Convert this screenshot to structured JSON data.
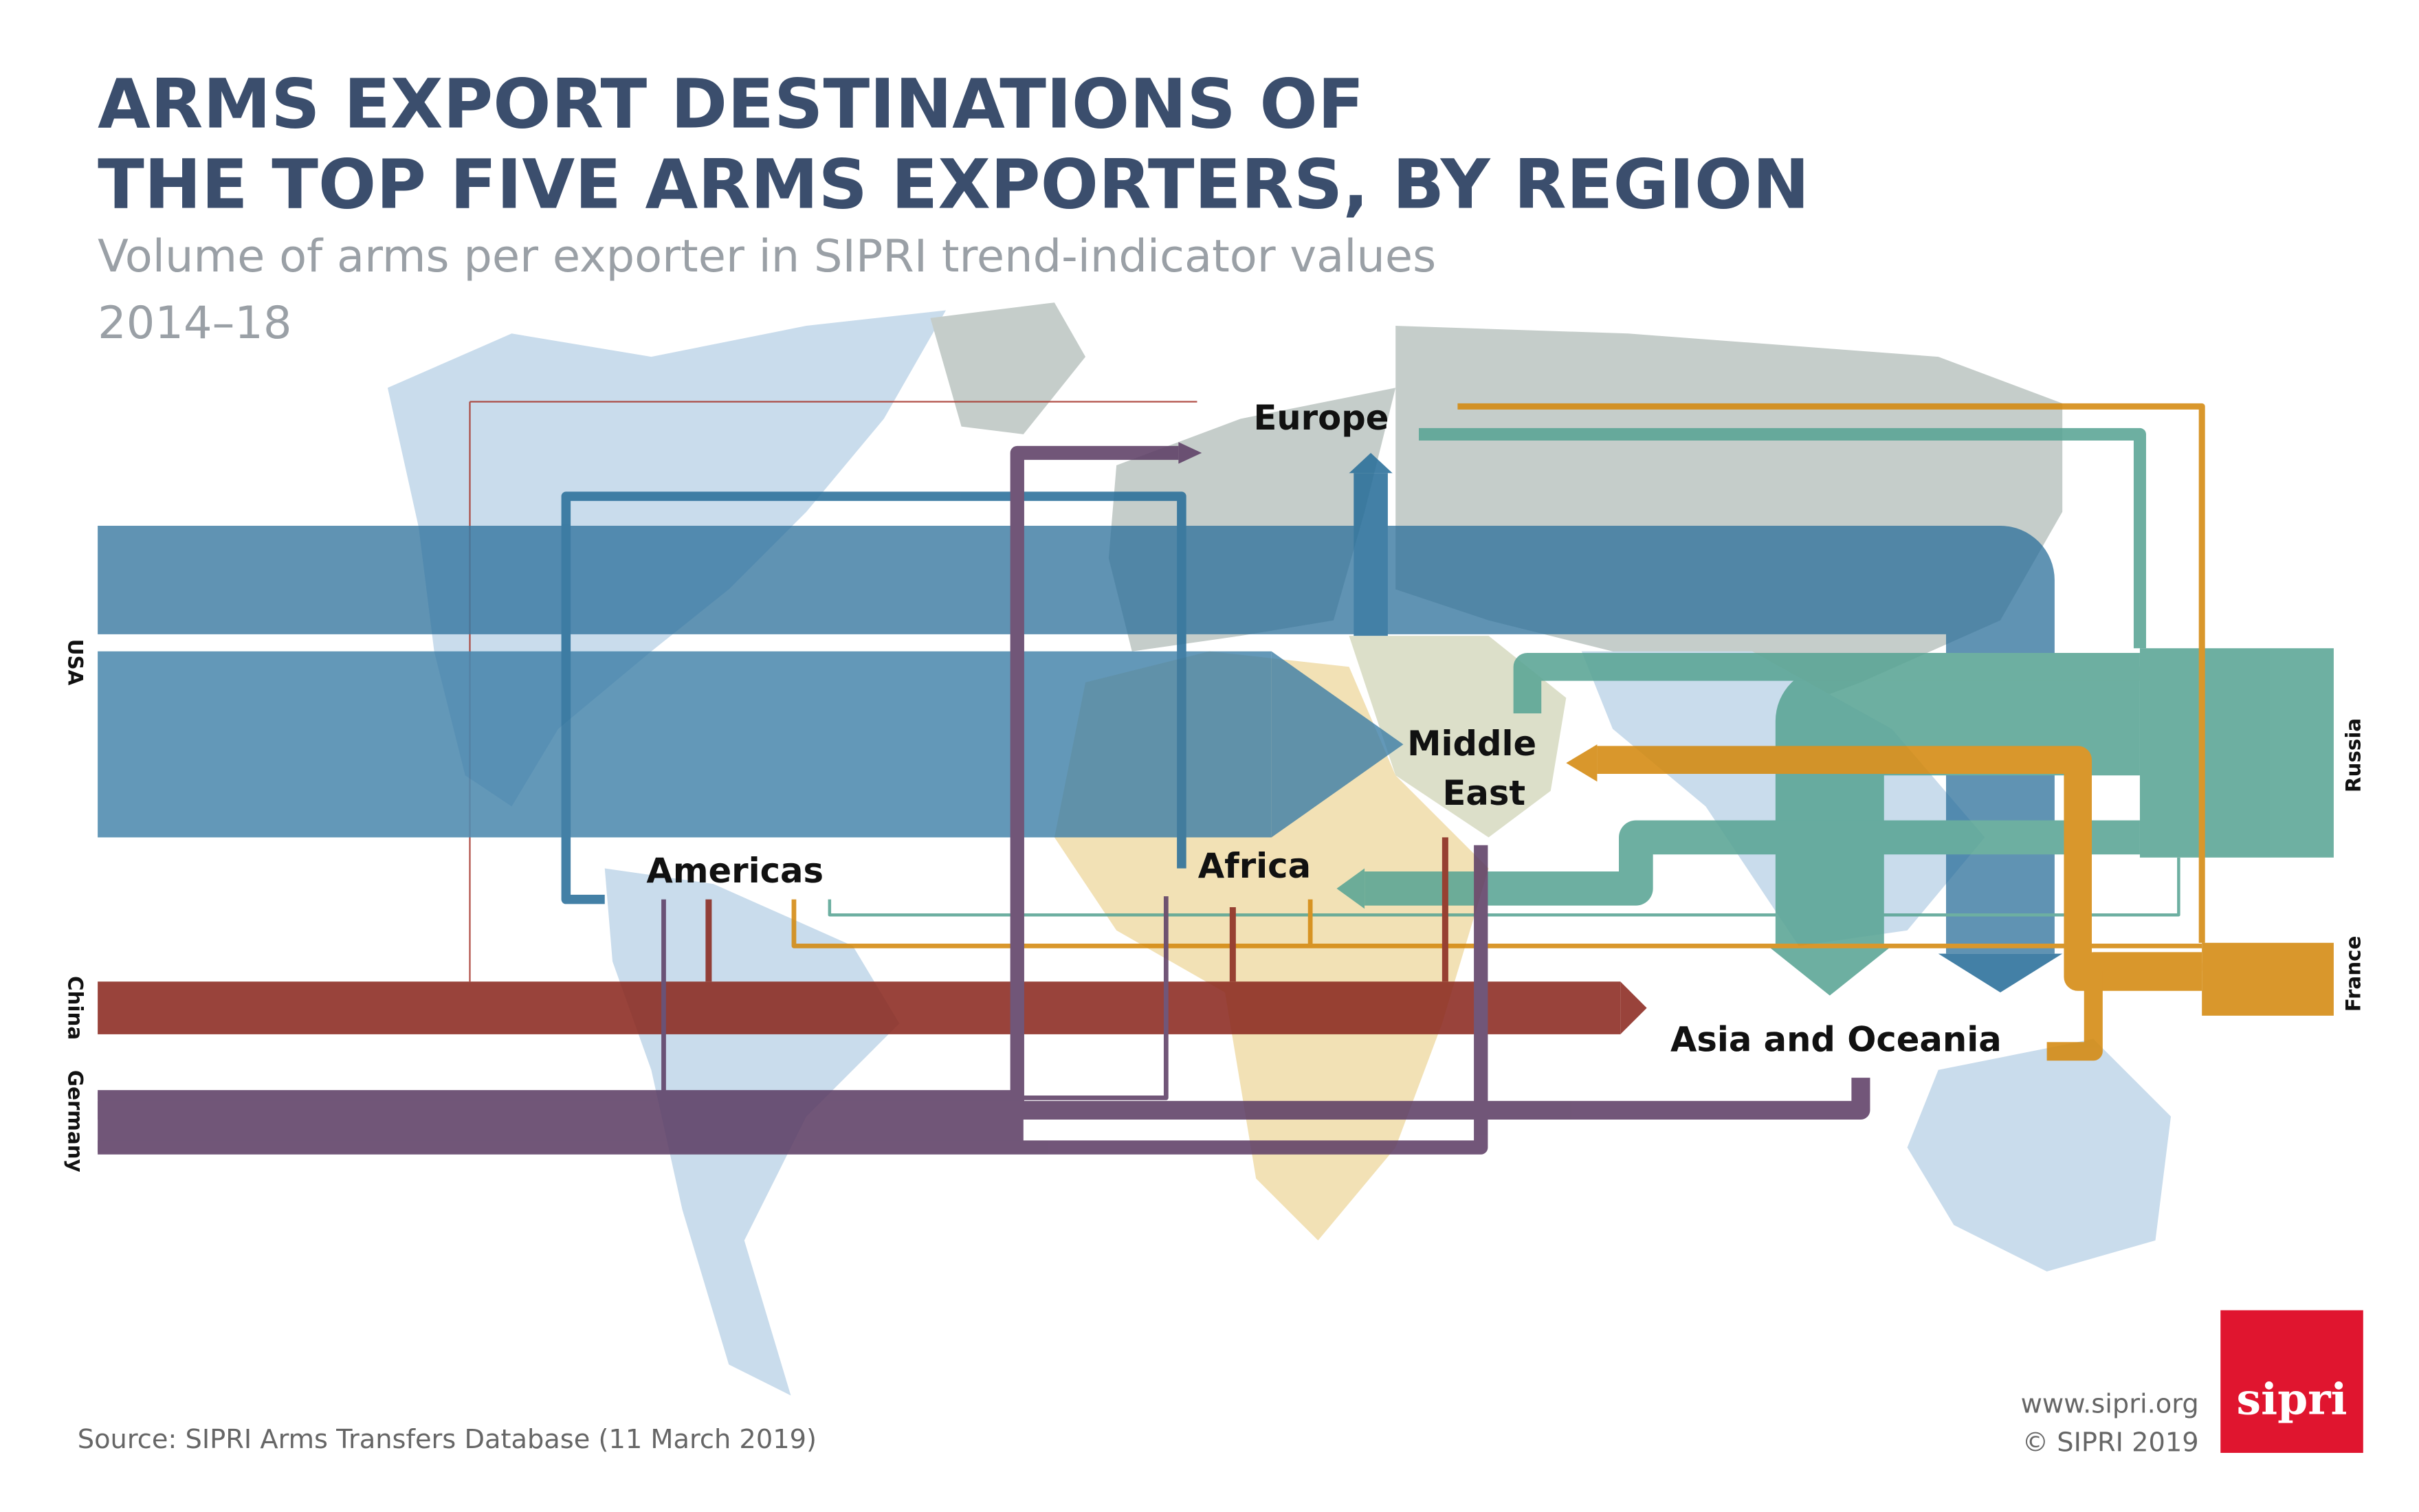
{
  "header": {
    "title_lines": [
      "ARMS EXPORT DESTINATIONS OF",
      "THE TOP FIVE ARMS EXPORTERS, BY REGION"
    ],
    "subtitle": "Volume of arms per exporter in SIPRI trend-indicator values",
    "period": "2014–18"
  },
  "exporters": [
    "USA",
    "Russia",
    "France",
    "China",
    "Germany"
  ],
  "regions": [
    "Europe",
    [
      "Middle",
      "East"
    ],
    "Americas",
    "Africa",
    "Asia and Oceania"
  ],
  "footer": {
    "source": "Source: SIPRI Arms Transfers Database (11 March 2019)",
    "website": "www.sipri.org",
    "copyright": "© SIPRI 2019",
    "logo": "sipri"
  }
}
